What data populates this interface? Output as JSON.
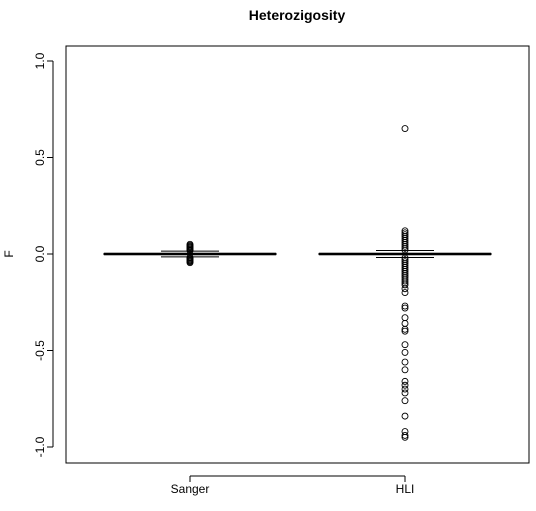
{
  "chart_data": {
    "type": "box",
    "title": "Heterozigosity",
    "xlabel": "",
    "ylabel": "F",
    "ylim": [
      -1.1,
      1.1
    ],
    "yticks": [
      -1.0,
      -0.5,
      0.0,
      0.5,
      1.0
    ],
    "ytick_labels": [
      "-1.0",
      "-0.5",
      "0.0",
      "0.5",
      "1.0"
    ],
    "grid": false,
    "categories": [
      "Sanger",
      "HLI"
    ],
    "boxes": [
      {
        "name": "Sanger",
        "q1": -0.003,
        "median": 0.0,
        "q3": 0.003,
        "whisker_low": -0.015,
        "whisker_high": 0.015,
        "outliers": [
          0.05,
          0.045,
          0.04,
          0.035,
          0.03,
          0.025,
          0.02,
          0.018,
          -0.018,
          -0.02,
          -0.025,
          -0.03,
          -0.035,
          -0.04,
          -0.045
        ]
      },
      {
        "name": "HLI",
        "q1": -0.003,
        "median": 0.0,
        "q3": 0.003,
        "whisker_low": -0.018,
        "whisker_high": 0.018,
        "outliers": [
          0.65,
          0.12,
          0.11,
          0.1,
          0.09,
          0.08,
          0.07,
          0.06,
          0.05,
          0.04,
          0.03,
          0.02,
          -0.02,
          -0.03,
          -0.04,
          -0.05,
          -0.06,
          -0.07,
          -0.08,
          -0.09,
          -0.1,
          -0.11,
          -0.12,
          -0.13,
          -0.14,
          -0.15,
          -0.16,
          -0.18,
          -0.2,
          -0.27,
          -0.28,
          -0.33,
          -0.36,
          -0.39,
          -0.4,
          -0.47,
          -0.51,
          -0.56,
          -0.6,
          -0.66,
          -0.68,
          -0.7,
          -0.72,
          -0.76,
          -0.84,
          -0.92,
          -0.94,
          -0.95
        ]
      }
    ]
  }
}
